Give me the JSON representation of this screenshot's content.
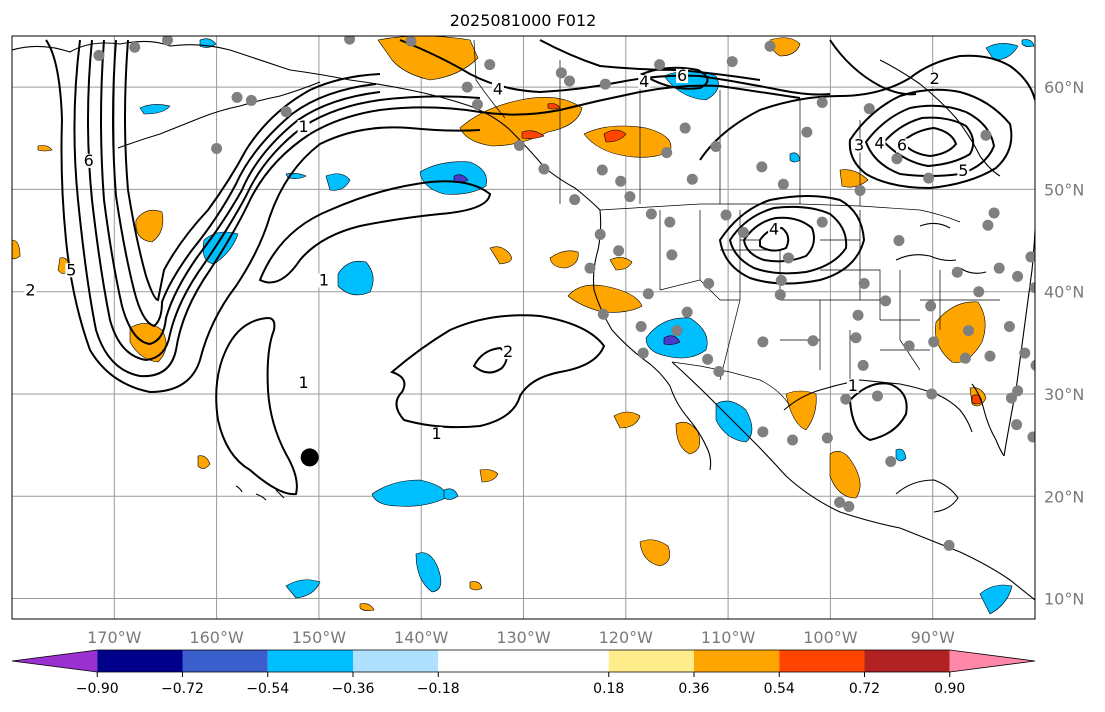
{
  "title": "2025081000 F012",
  "map": {
    "lon_range": [
      -180,
      -80
    ],
    "lat_range": [
      8,
      65
    ],
    "gridlines": true,
    "lon_ticks": [
      {
        "lon": -170,
        "label": "170°W"
      },
      {
        "lon": -160,
        "label": "160°W"
      },
      {
        "lon": -150,
        "label": "150°W"
      },
      {
        "lon": -140,
        "label": "140°W"
      },
      {
        "lon": -130,
        "label": "130°W"
      },
      {
        "lon": -120,
        "label": "120°W"
      },
      {
        "lon": -110,
        "label": "110°W"
      },
      {
        "lon": -100,
        "label": "100°W"
      },
      {
        "lon": -90,
        "label": "90°W"
      }
    ],
    "lat_ticks": [
      {
        "lat": 60,
        "label": "60°N"
      },
      {
        "lat": 50,
        "label": "50°N"
      },
      {
        "lat": 40,
        "label": "40°N"
      },
      {
        "lat": 30,
        "label": "30°N"
      },
      {
        "lat": 20,
        "label": "20°N"
      },
      {
        "lat": 10,
        "label": "10°N"
      }
    ],
    "marker": {
      "lon": -150.9,
      "lat": 23.8,
      "color": "#000000"
    },
    "contour_labels": [
      {
        "text": "1",
        "lon": -151.5,
        "lat": 30.8
      },
      {
        "text": "1",
        "lon": -138.5,
        "lat": 25.8
      },
      {
        "text": "1",
        "lon": -149.5,
        "lat": 40.8
      },
      {
        "text": "1",
        "lon": -151.5,
        "lat": 55.8
      },
      {
        "text": "2",
        "lon": -131.5,
        "lat": 33.8
      },
      {
        "text": "2",
        "lon": -178.2,
        "lat": 39.8
      },
      {
        "text": "5",
        "lon": -174.2,
        "lat": 41.8
      },
      {
        "text": "4",
        "lon": -105.5,
        "lat": 45.8
      },
      {
        "text": "4",
        "lon": -132.5,
        "lat": 59.5
      },
      {
        "text": "4",
        "lon": -118.2,
        "lat": 60.2
      },
      {
        "text": "6",
        "lon": -114.5,
        "lat": 60.8
      },
      {
        "text": "3",
        "lon": -97.2,
        "lat": 54.0
      },
      {
        "text": "4",
        "lon": -95.2,
        "lat": 54.2
      },
      {
        "text": "6",
        "lon": -93.0,
        "lat": 54.0
      },
      {
        "text": "2",
        "lon": -89.8,
        "lat": 60.5
      },
      {
        "text": "5",
        "lon": -87.0,
        "lat": 51.5
      },
      {
        "text": "1",
        "lon": -97.8,
        "lat": 30.5
      },
      {
        "text": "6",
        "lon": -172.5,
        "lat": 52.5
      }
    ],
    "station_points": [
      [
        -164.8,
        64.6
      ],
      [
        -158.0,
        59.0
      ],
      [
        -156.6,
        58.7
      ],
      [
        -160.0,
        54.0
      ],
      [
        -153.2,
        57.6
      ],
      [
        -141.0,
        64.5
      ],
      [
        -133.3,
        62.2
      ],
      [
        -134.5,
        58.3
      ],
      [
        -125.5,
        60.6
      ],
      [
        -122.3,
        51.9
      ],
      [
        -119.6,
        49.3
      ],
      [
        -120.5,
        50.8
      ],
      [
        -116.0,
        53.6
      ],
      [
        -114.2,
        56.0
      ],
      [
        -111.2,
        54.2
      ],
      [
        -113.5,
        51.0
      ],
      [
        -106.7,
        52.2
      ],
      [
        -104.6,
        50.5
      ],
      [
        -102.3,
        55.6
      ],
      [
        -100.8,
        58.5
      ],
      [
        -97.1,
        49.9
      ],
      [
        -93.5,
        53.0
      ],
      [
        -90.4,
        51.1
      ],
      [
        -84.0,
        47.7
      ],
      [
        -84.8,
        55.3
      ],
      [
        -108.5,
        45.8
      ],
      [
        -104.8,
        41.1
      ],
      [
        -111.9,
        40.8
      ],
      [
        -115.5,
        43.6
      ],
      [
        -117.5,
        47.6
      ],
      [
        -122.5,
        45.6
      ],
      [
        -123.5,
        42.3
      ],
      [
        -122.2,
        37.8
      ],
      [
        -118.3,
        34.0
      ],
      [
        -112.0,
        33.4
      ],
      [
        -106.6,
        35.1
      ],
      [
        -101.7,
        35.2
      ],
      [
        -97.5,
        35.5
      ],
      [
        -96.8,
        32.8
      ],
      [
        -95.4,
        29.8
      ],
      [
        -98.5,
        29.5
      ],
      [
        -90.1,
        30.0
      ],
      [
        -86.8,
        33.5
      ],
      [
        -84.4,
        33.7
      ],
      [
        -81.7,
        30.3
      ],
      [
        -80.2,
        25.8
      ],
      [
        -81.8,
        27.0
      ],
      [
        -82.3,
        29.6
      ],
      [
        -83.5,
        42.3
      ],
      [
        -87.6,
        41.9
      ],
      [
        -90.2,
        38.6
      ],
      [
        -93.3,
        45.0
      ],
      [
        -96.7,
        40.8
      ],
      [
        -100.8,
        46.8
      ],
      [
        -104.9,
        39.7
      ],
      [
        -97.3,
        37.7
      ],
      [
        -94.6,
        39.1
      ],
      [
        -92.3,
        34.7
      ],
      [
        -86.5,
        36.2
      ],
      [
        -89.9,
        35.1
      ],
      [
        -85.5,
        40.0
      ],
      [
        -81.7,
        41.5
      ],
      [
        -80.0,
        40.4
      ],
      [
        -78.6,
        35.8
      ],
      [
        -81.0,
        34.0
      ],
      [
        -82.5,
        36.6
      ],
      [
        -79.9,
        32.8
      ],
      [
        -77.4,
        37.6
      ],
      [
        -75.1,
        39.9
      ],
      [
        -73.8,
        42.7
      ],
      [
        -71.1,
        42.4
      ],
      [
        -69.8,
        44.3
      ],
      [
        -80.4,
        43.4
      ],
      [
        -75.7,
        45.4
      ],
      [
        -79.4,
        43.7
      ],
      [
        -106.6,
        26.3
      ],
      [
        -103.7,
        25.5
      ],
      [
        -100.3,
        25.7
      ],
      [
        -98.2,
        19.0
      ],
      [
        -99.1,
        19.4
      ],
      [
        -118.5,
        36.6
      ],
      [
        -117.8,
        39.8
      ],
      [
        -115.0,
        36.2
      ],
      [
        -114.0,
        38.0
      ],
      [
        -110.9,
        32.2
      ],
      [
        -120.7,
        44.0
      ],
      [
        -125.0,
        49.0
      ],
      [
        -128.0,
        52.0
      ],
      [
        -130.4,
        54.3
      ],
      [
        -135.5,
        60.0
      ],
      [
        -126.3,
        61.4
      ],
      [
        -122.0,
        60.3
      ],
      [
        -116.7,
        62.2
      ],
      [
        -109.6,
        62.5
      ],
      [
        -105.9,
        64.0
      ],
      [
        -147.0,
        64.7
      ],
      [
        -168.0,
        63.9
      ],
      [
        -171.5,
        63.1
      ],
      [
        -94.1,
        23.4
      ],
      [
        -88.4,
        15.2
      ],
      [
        -96.2,
        57.9
      ],
      [
        -110.2,
        47.5
      ],
      [
        -104.1,
        43.3
      ],
      [
        -115.7,
        46.8
      ],
      [
        -84.6,
        46.5
      ]
    ]
  },
  "colorbar": {
    "bounds": [
      -1.08,
      -0.9,
      -0.72,
      -0.54,
      -0.36,
      -0.18,
      0.18,
      0.36,
      0.54,
      0.72,
      0.9,
      1.08
    ],
    "colors": [
      "#9b30d0",
      "#00008b",
      "#3a5fcd",
      "#00bfff",
      "#b0e0ff",
      "#ffffff",
      "#ffec8b",
      "#ffa500",
      "#ff4500",
      "#b22222",
      "#ff88aa"
    ],
    "under_color": "#9b30d0",
    "over_color": "#ff88aa",
    "tick_labels": [
      "−0.90",
      "−0.72",
      "−0.54",
      "−0.36",
      "−0.18",
      "0.18",
      "0.36",
      "0.54",
      "0.72",
      "0.90"
    ],
    "extend": "both"
  },
  "shading_colors": {
    "orange": "#ffa500",
    "red": "#ff4500",
    "blue": "#00bfff",
    "purple": "#4b3acb"
  }
}
